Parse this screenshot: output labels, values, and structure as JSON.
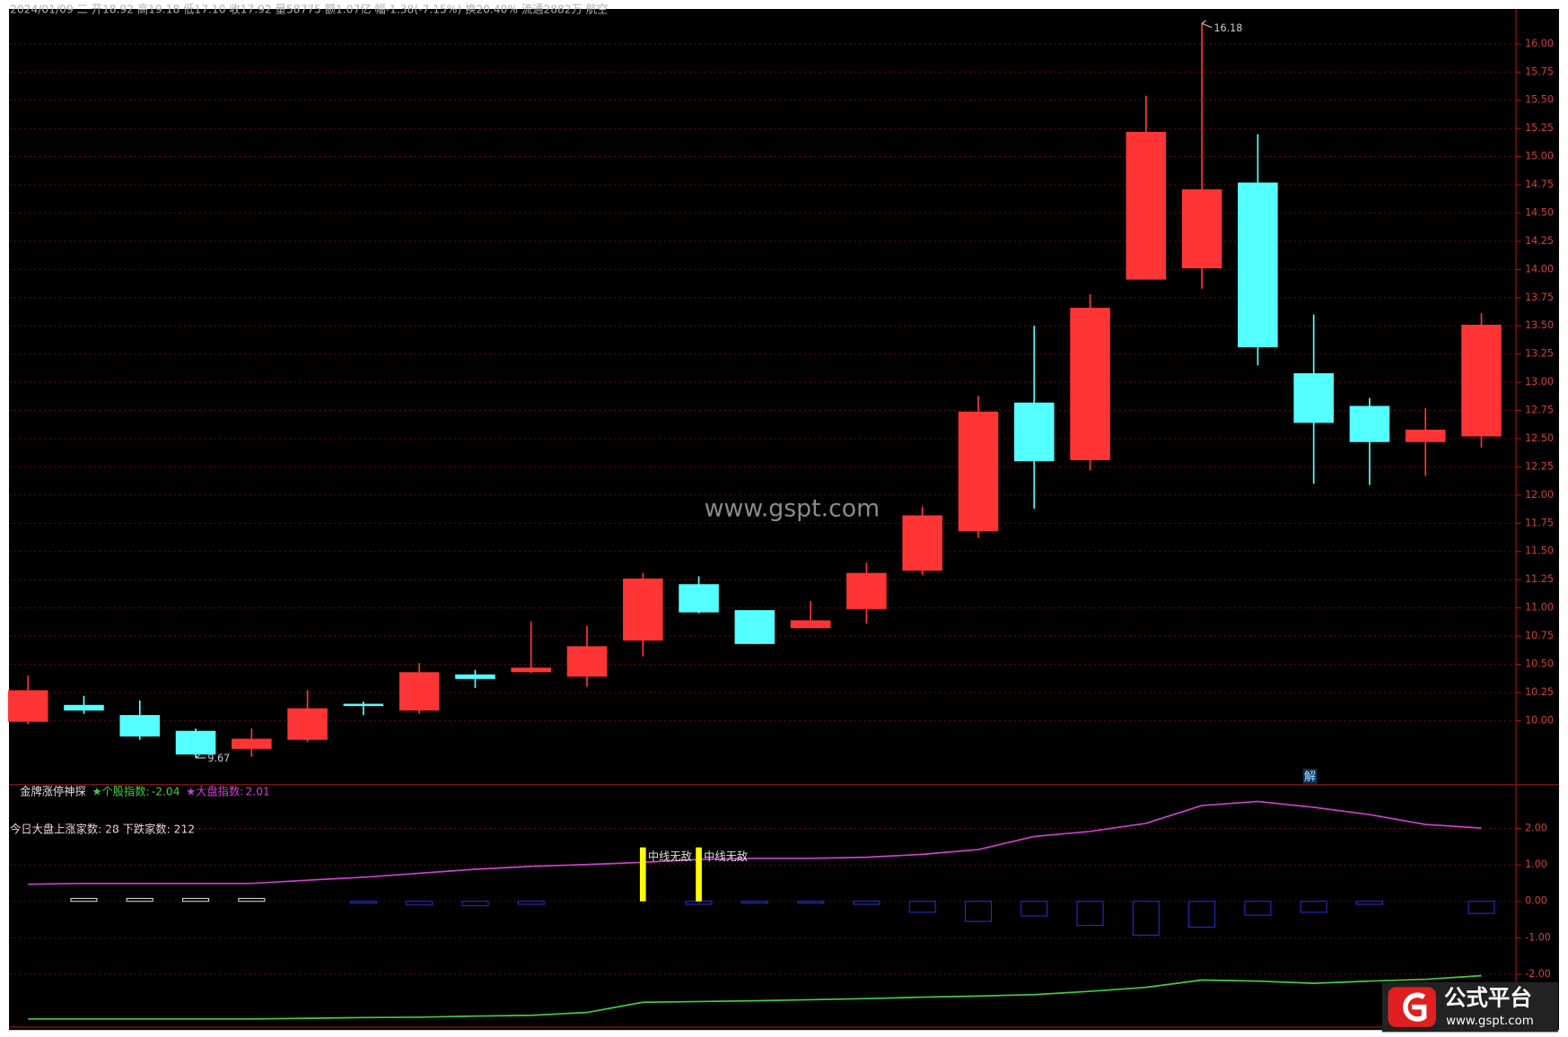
{
  "chart_data": [
    {
      "type": "candlestick",
      "header": "2024/01/09 二 开18.92 高19.18 低17.10 收17.92 量58775 额1.07亿 幅-1.38(-7.15%) 换20.40% 流通2882万 航空",
      "watermark": "www.gspt.com",
      "logo_title": "公式平台",
      "logo_url": "www.gspt.com",
      "marker": "解",
      "open": [
        9.99,
        10.14,
        10.05,
        9.91,
        9.75,
        9.83,
        10.15,
        10.09,
        10.41,
        10.43,
        10.39,
        10.71,
        11.21,
        10.98,
        10.82,
        10.99,
        11.33,
        11.68,
        12.82,
        12.31,
        13.91,
        14.01,
        14.77,
        13.08,
        12.79,
        12.47,
        12.52
      ],
      "high": [
        10.4,
        10.22,
        10.18,
        9.93,
        9.93,
        10.27,
        10.17,
        10.51,
        10.45,
        10.88,
        10.84,
        11.31,
        11.28,
        10.98,
        11.06,
        11.4,
        11.9,
        12.88,
        13.5,
        13.78,
        15.54,
        16.18,
        15.2,
        13.6,
        12.86,
        12.77,
        13.61
      ],
      "low": [
        9.97,
        10.06,
        9.83,
        9.67,
        9.68,
        9.81,
        10.05,
        10.06,
        10.29,
        10.42,
        10.3,
        10.57,
        10.95,
        10.68,
        10.82,
        10.86,
        11.29,
        11.62,
        11.88,
        12.22,
        13.91,
        13.83,
        13.15,
        12.1,
        12.09,
        12.17,
        12.42
      ],
      "close": [
        10.27,
        10.09,
        9.86,
        9.7,
        9.84,
        10.11,
        10.13,
        10.43,
        10.37,
        10.47,
        10.66,
        11.26,
        10.96,
        10.68,
        10.89,
        11.31,
        11.82,
        12.74,
        12.3,
        13.66,
        15.22,
        14.71,
        13.31,
        12.64,
        12.47,
        12.58,
        13.51
      ],
      "high_label": "16.18",
      "low_label": "9.67",
      "up_color": "#ff3434",
      "down_color": "#54ffff",
      "ylim": [
        9.45,
        16.3
      ],
      "yticks": [
        {
          "value": 10,
          "label": "10.00"
        },
        {
          "value": 10.25,
          "label": "10.25"
        },
        {
          "value": 10.5,
          "label": "10.50"
        },
        {
          "value": 10.75,
          "label": "10.75"
        },
        {
          "value": 11,
          "label": "11.00"
        },
        {
          "value": 11.25,
          "label": "11.25"
        },
        {
          "value": 11.5,
          "label": "11.50"
        },
        {
          "value": 11.75,
          "label": "11.75"
        },
        {
          "value": 12,
          "label": "12.00"
        },
        {
          "value": 12.25,
          "label": "12.25"
        },
        {
          "value": 12.5,
          "label": "12.50"
        },
        {
          "value": 12.75,
          "label": "12.75"
        },
        {
          "value": 13,
          "label": "13.00"
        },
        {
          "value": 13.25,
          "label": "13.25"
        },
        {
          "value": 13.5,
          "label": "13.50"
        },
        {
          "value": 13.75,
          "label": "13.75"
        },
        {
          "value": 14,
          "label": "14.00"
        },
        {
          "value": 14.25,
          "label": "14.25"
        },
        {
          "value": 14.5,
          "label": "14.50"
        },
        {
          "value": 14.75,
          "label": "14.75"
        },
        {
          "value": 15,
          "label": "15.00"
        },
        {
          "value": 15.25,
          "label": "15.25"
        },
        {
          "value": 15.5,
          "label": "15.50"
        },
        {
          "value": 15.75,
          "label": "15.75"
        },
        {
          "value": 16,
          "label": "16.00"
        }
      ],
      "grid": true
    },
    {
      "type": "indicator",
      "title": "金牌涨停神探",
      "breadth_text": "今日大盘上涨家数: 28 下跌家数: 212",
      "series": [
        {
          "name": "★个股指数:",
          "color": "#3fcf3f",
          "values": [
            -3.23,
            -3.23,
            -3.23,
            -3.23,
            -3.23,
            -3.21,
            -3.19,
            -3.18,
            -3.15,
            -3.13,
            -3.05,
            -2.77,
            -2.75,
            -2.73,
            -2.7,
            -2.67,
            -2.63,
            -2.6,
            -2.56,
            -2.47,
            -2.36,
            -2.16,
            -2.19,
            -2.25,
            -2.19,
            -2.14,
            -2.04
          ]
        },
        {
          "name": "★大盘指数:",
          "color": "#d040d0",
          "values": [
            0.47,
            0.49,
            0.49,
            0.49,
            0.49,
            0.58,
            0.66,
            0.77,
            0.88,
            0.96,
            1.01,
            1.07,
            1.15,
            1.18,
            1.18,
            1.21,
            1.29,
            1.42,
            1.78,
            1.92,
            2.14,
            2.63,
            2.74,
            2.58,
            2.38,
            2.11,
            2.01
          ]
        }
      ],
      "histogram": {
        "color": "#2828d0",
        "positive_color": "#d0d0d0",
        "values": [
          0,
          0.08,
          0.08,
          0.08,
          0.08,
          0,
          -0.05,
          -0.1,
          -0.12,
          -0.08,
          0,
          0,
          -0.08,
          -0.05,
          -0.05,
          -0.08,
          -0.3,
          -0.55,
          -0.4,
          -0.66,
          -0.93,
          -0.71,
          -0.38,
          -0.3,
          -0.08,
          0,
          -0.33
        ]
      },
      "signal": {
        "name": "中线无敌",
        "color": "#ffff00",
        "values": [
          null,
          null,
          null,
          null,
          null,
          null,
          null,
          null,
          null,
          null,
          null,
          1.48,
          1.48,
          null,
          null,
          null,
          null,
          null,
          null,
          null,
          null,
          null,
          null,
          null,
          null,
          null,
          null
        ]
      },
      "ylim": [
        -3.45,
        3.2
      ],
      "yticks": [
        {
          "value": 2,
          "label": "2.00"
        },
        {
          "value": 1,
          "label": "1.00"
        },
        {
          "value": 0,
          "label": "0.00"
        },
        {
          "value": -1,
          "label": "-1.00"
        },
        {
          "value": -2,
          "label": "-2.00"
        }
      ],
      "grid": true
    }
  ]
}
